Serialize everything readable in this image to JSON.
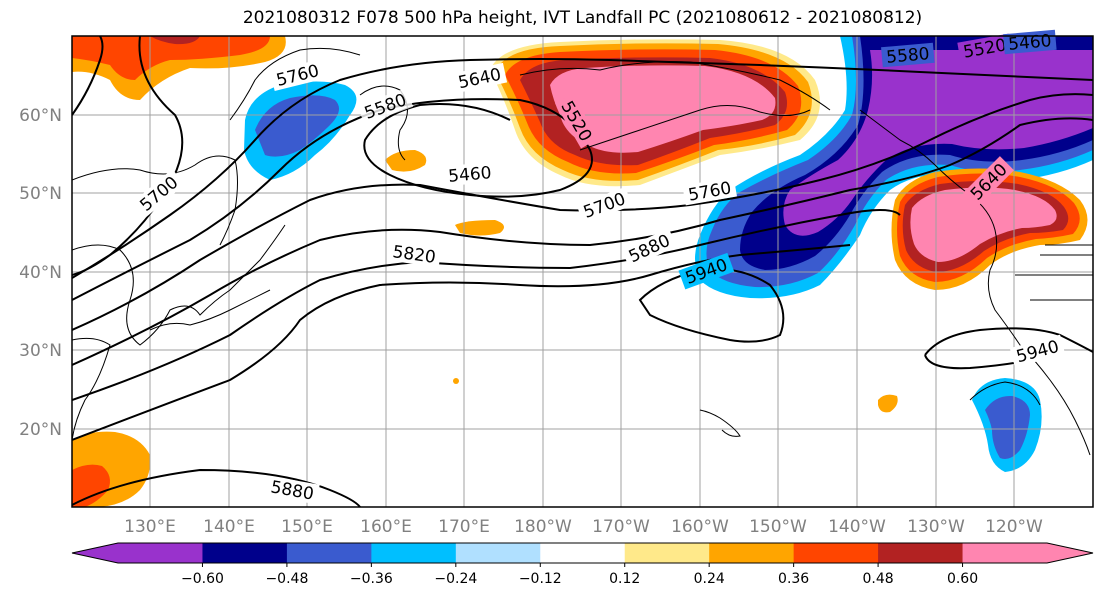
{
  "title": "2021080312 F078 500 hPa height, IVT Landfall PC (2021080612 - 2021080812)",
  "lat_labels": [
    "60°N",
    "50°N",
    "40°N",
    "30°N",
    "20°N"
  ],
  "lon_labels": [
    "130°E",
    "140°E",
    "150°E",
    "160°E",
    "170°E",
    "180°W",
    "170°W",
    "160°W",
    "150°W",
    "140°W",
    "130°W",
    "120°W"
  ],
  "contour_labels": [
    "5760",
    "5640",
    "5580",
    "5520",
    "5460",
    "5700",
    "5760",
    "5700",
    "5820",
    "5880",
    "5940",
    "5640",
    "5580",
    "5520",
    "5460",
    "5940",
    "5880"
  ],
  "colorbar": {
    "colors": [
      "#9932cc",
      "#00008b",
      "#3a5bcf",
      "#00bfff",
      "#b0e0ff",
      "#ffffff",
      "#ffe98a",
      "#ffa500",
      "#ff4500",
      "#b22222",
      "#ff85b0"
    ],
    "tick_labels": [
      "−0.60",
      "−0.48",
      "−0.36",
      "−0.24",
      "−0.12",
      "0.12",
      "0.24",
      "0.36",
      "0.48",
      "0.60"
    ]
  }
}
